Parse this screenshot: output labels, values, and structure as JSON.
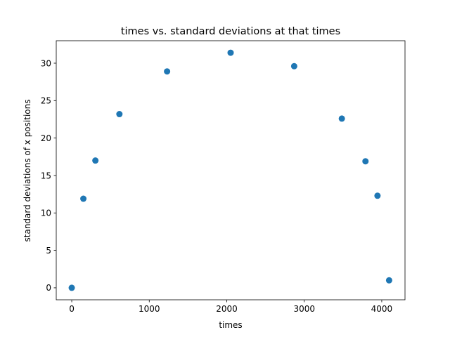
{
  "chart_data": {
    "type": "scatter",
    "title": "times vs. standard deviations at that times",
    "xlabel": "times",
    "ylabel": "standard deviations of x positions",
    "xlim": [
      -200,
      4300
    ],
    "ylim": [
      -1.6,
      33.0
    ],
    "xticks": [
      0,
      1000,
      2000,
      3000,
      4000
    ],
    "yticks": [
      0,
      5,
      10,
      15,
      20,
      25,
      30
    ],
    "grid": false,
    "marker_color": "#1f77b4",
    "series": [
      {
        "x": [
          0,
          150,
          305,
          615,
          1230,
          2050,
          2870,
          3485,
          3790,
          3945,
          4095
        ],
        "y": [
          0.0,
          11.9,
          17.0,
          23.2,
          28.9,
          31.4,
          29.6,
          22.6,
          16.9,
          12.3,
          1.0
        ]
      }
    ]
  }
}
